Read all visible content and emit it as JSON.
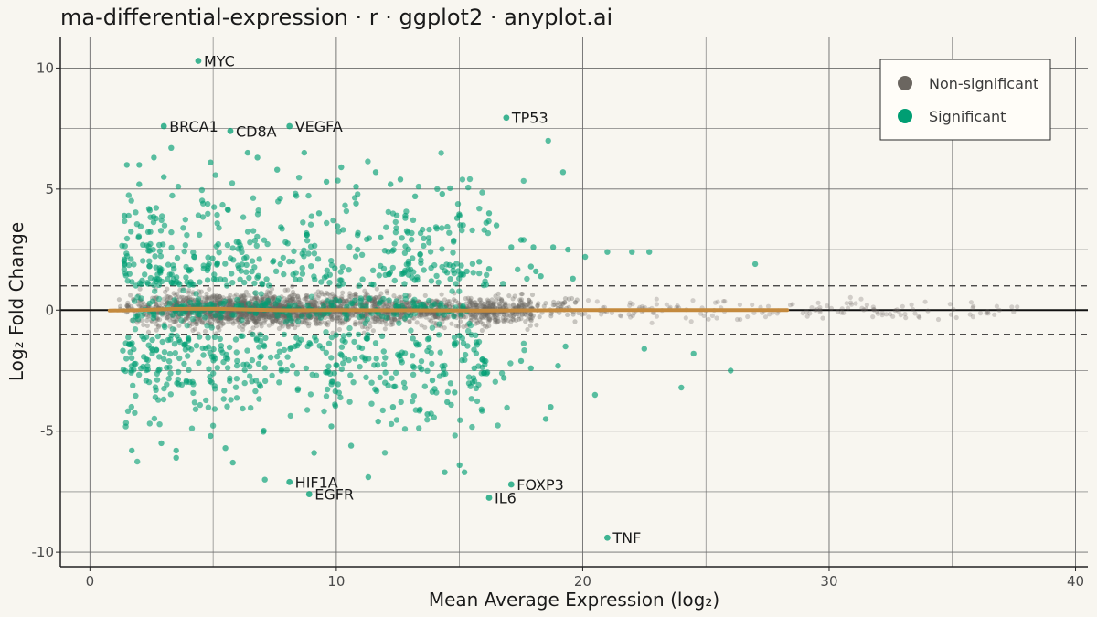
{
  "chart_data": {
    "type": "scatter",
    "title": "ma-differential-expression · r · ggplot2 · anyplot.ai",
    "xlabel": "Mean Average Expression (log₂)",
    "ylabel": "Log₂ Fold Change",
    "xlim": [
      -1.2,
      40.5
    ],
    "ylim": [
      -10.6,
      11.3
    ],
    "x_ticks": [
      0,
      10,
      20,
      30,
      40
    ],
    "y_ticks": [
      -10,
      -5,
      0,
      5,
      10
    ],
    "x_tick_labels": [
      "0",
      "10",
      "20",
      "30",
      "40"
    ],
    "y_tick_labels": [
      "-10",
      "-5",
      "0",
      "5",
      "10"
    ],
    "grid": true,
    "threshold_lines": [
      -1,
      1
    ],
    "zero_line": 0,
    "legend": {
      "position": "top-right",
      "entries": [
        {
          "label": "Non-significant",
          "color": "#6b6660"
        },
        {
          "label": "Significant",
          "color": "#009E73"
        }
      ]
    },
    "colors": {
      "nonsig": "#6b6660",
      "sig": "#009E73",
      "trend": "#C48A3E",
      "background": "#F8F6F0"
    },
    "labeled_genes": [
      {
        "gene": "MYC",
        "x": 4.4,
        "y": 10.3
      },
      {
        "gene": "BRCA1",
        "x": 3.0,
        "y": 7.6
      },
      {
        "gene": "CD8A",
        "x": 5.7,
        "y": 7.4
      },
      {
        "gene": "VEGFA",
        "x": 8.1,
        "y": 7.6
      },
      {
        "gene": "TP53",
        "x": 16.9,
        "y": 7.95
      },
      {
        "gene": "HIF1A",
        "x": 8.1,
        "y": -7.1
      },
      {
        "gene": "EGFR",
        "x": 8.9,
        "y": -7.6
      },
      {
        "gene": "FOXP3",
        "x": 17.1,
        "y": -7.2
      },
      {
        "gene": "IL6",
        "x": 16.2,
        "y": -7.75
      },
      {
        "gene": "TNF",
        "x": 21.0,
        "y": -9.4
      }
    ],
    "significant_outliers": [
      [
        18.6,
        7.0
      ],
      [
        19.2,
        5.7
      ],
      [
        14.3,
        4.8
      ],
      [
        15.0,
        3.9
      ],
      [
        14.9,
        3.8
      ],
      [
        16.2,
        4.0
      ],
      [
        16.5,
        3.5
      ],
      [
        17.5,
        2.9
      ],
      [
        17.1,
        2.6
      ],
      [
        18.0,
        2.6
      ],
      [
        18.8,
        2.6
      ],
      [
        19.4,
        2.5
      ],
      [
        20.1,
        2.2
      ],
      [
        21.0,
        2.4
      ],
      [
        22.0,
        2.4
      ],
      [
        22.7,
        2.4
      ],
      [
        27.0,
        1.9
      ],
      [
        18.1,
        1.6
      ],
      [
        18.3,
        1.4
      ],
      [
        16.2,
        1.7
      ],
      [
        15.3,
        1.6
      ],
      [
        19.6,
        1.3
      ],
      [
        17.9,
        1.8
      ],
      [
        15.8,
        2.0
      ],
      [
        20.5,
        -3.5
      ],
      [
        24.0,
        -3.2
      ],
      [
        24.5,
        -1.8
      ],
      [
        26.0,
        -2.5
      ],
      [
        18.7,
        -4.0
      ],
      [
        18.5,
        -4.5
      ],
      [
        19.0,
        -2.3
      ],
      [
        17.5,
        -2.1
      ],
      [
        16.0,
        -2.6
      ],
      [
        15.6,
        -2.4
      ],
      [
        14.5,
        -3.8
      ],
      [
        13.7,
        -4.3
      ],
      [
        15.2,
        -6.7
      ],
      [
        14.4,
        -6.7
      ],
      [
        15.0,
        -6.4
      ],
      [
        11.3,
        -6.9
      ],
      [
        7.1,
        -7.0
      ],
      [
        9.1,
        -5.9
      ],
      [
        5.8,
        -6.3
      ],
      [
        5.5,
        -5.7
      ],
      [
        4.9,
        -5.2
      ],
      [
        2.9,
        -5.5
      ],
      [
        3.5,
        -6.1
      ],
      [
        1.7,
        -5.8
      ],
      [
        3.5,
        -5.8
      ],
      [
        12.3,
        -4.0
      ],
      [
        11.7,
        -4.6
      ],
      [
        22.5,
        -1.6
      ],
      [
        17.9,
        -2.4
      ],
      [
        16.8,
        -2.8
      ],
      [
        19.3,
        -1.5
      ],
      [
        14.8,
        -3.4
      ],
      [
        13.4,
        -4.1
      ],
      [
        10.6,
        -5.6
      ],
      [
        9.8,
        -4.8
      ],
      [
        13.9,
        -2.9
      ],
      [
        2.0,
        6.0
      ],
      [
        2.0,
        5.2
      ],
      [
        1.5,
        6.0
      ],
      [
        1.4,
        3.9
      ],
      [
        3.0,
        5.5
      ],
      [
        4.9,
        6.1
      ],
      [
        6.4,
        6.5
      ],
      [
        6.8,
        6.3
      ],
      [
        7.6,
        5.8
      ],
      [
        8.7,
        6.5
      ],
      [
        9.6,
        5.3
      ],
      [
        10.2,
        5.9
      ],
      [
        10.8,
        5.1
      ],
      [
        11.6,
        5.7
      ],
      [
        12.2,
        5.2
      ],
      [
        12.6,
        5.4
      ],
      [
        13.2,
        4.7
      ],
      [
        3.3,
        6.7
      ],
      [
        2.6,
        6.3
      ],
      [
        9.3,
        4.0
      ],
      [
        10.8,
        4.4
      ],
      [
        12.8,
        3.9
      ],
      [
        12.9,
        3.2
      ],
      [
        11.8,
        3.0
      ]
    ]
  }
}
